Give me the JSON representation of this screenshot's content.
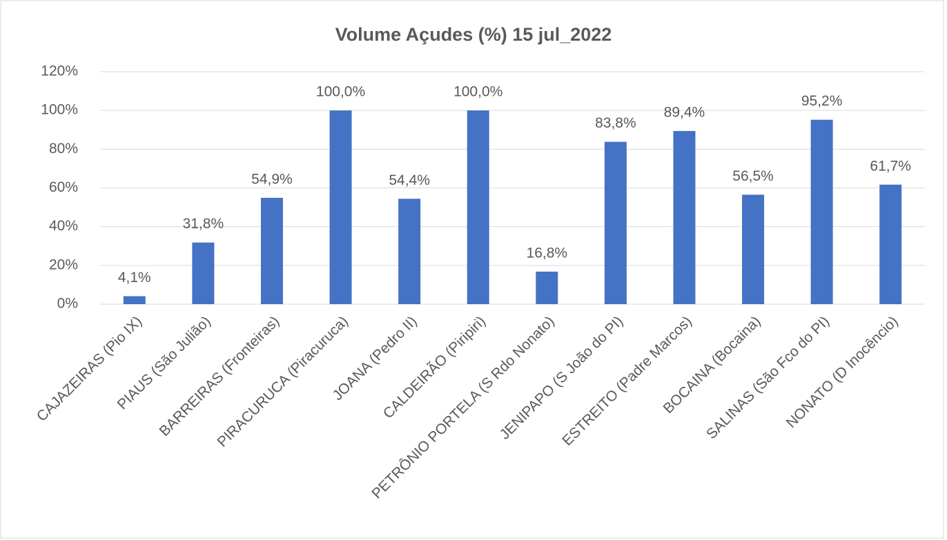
{
  "chart_data": {
    "type": "bar",
    "title": "Volume Açudes (%) 15 jul_2022",
    "categories": [
      "CAJAZEIRAS (Pio IX)",
      "PIAUS (São Julião)",
      "BARREIRAS (Fronteiras)",
      "PIRACURUCA (Piracuruca)",
      "JOANA (Pedro II)",
      "CALDEIRÃO (Piripiri)",
      "PETRÔNIO PORTELA (S Rdo Nonato)",
      "JENIPAPO (S João do PI)",
      "ESTREITO (Padre Marcos)",
      "BOCAINA (Bocaina)",
      "SALINAS (São Fco do PI)",
      "NONATO (D Inocêncio)"
    ],
    "values": [
      4.1,
      31.8,
      54.9,
      100.0,
      54.4,
      100.0,
      16.8,
      83.8,
      89.4,
      56.5,
      95.2,
      61.7
    ],
    "value_labels": [
      "4,1%",
      "31,8%",
      "54,9%",
      "100,0%",
      "54,4%",
      "100,0%",
      "16,8%",
      "83,8%",
      "89,4%",
      "56,5%",
      "95,2%",
      "61,7%"
    ],
    "color": "#4472c4",
    "ylim": [
      0,
      120
    ],
    "yticks": [
      {
        "value": 0,
        "label": "0%"
      },
      {
        "value": 20,
        "label": "20%"
      },
      {
        "value": 40,
        "label": "40%"
      },
      {
        "value": 60,
        "label": "60%"
      },
      {
        "value": 80,
        "label": "80%"
      },
      {
        "value": 100,
        "label": "100%"
      },
      {
        "value": 120,
        "label": "120%"
      }
    ],
    "grid": true
  }
}
